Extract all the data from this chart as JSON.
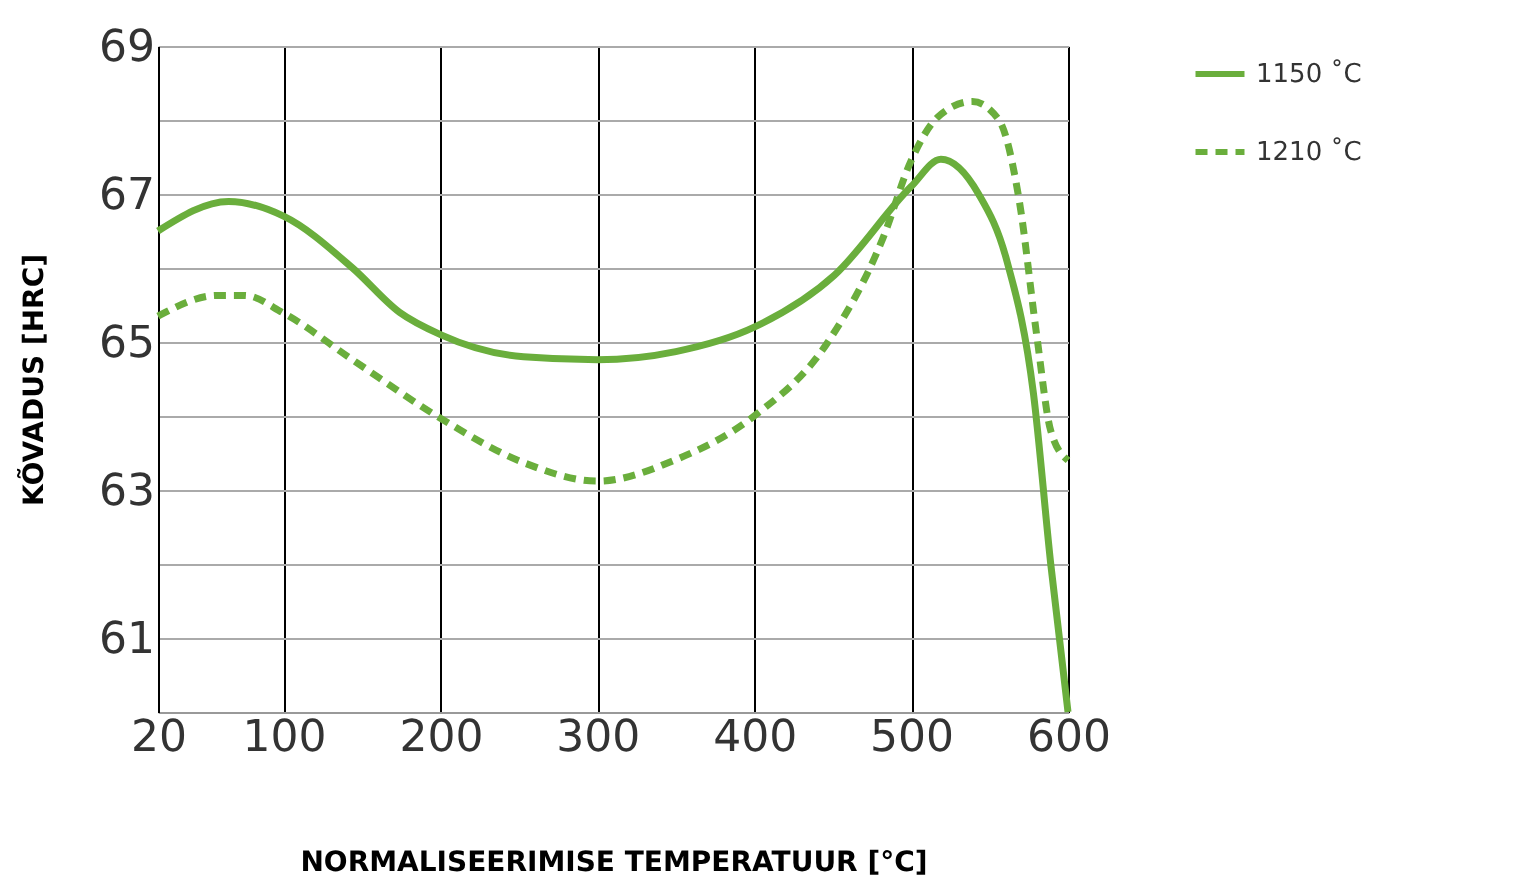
{
  "chart_data": {
    "type": "line",
    "xlabel": "NORMALISEERIMISE TEMPERATUUR [°C]",
    "ylabel": "KÕVADUS [HRC]",
    "xlim": [
      20,
      600
    ],
    "xticks": [
      20,
      100,
      200,
      300,
      400,
      500,
      600
    ],
    "ylim": [
      60,
      69
    ],
    "yticks": [
      {
        "value": 60,
        "label": null
      },
      61,
      {
        "value": 62,
        "label": null
      },
      63,
      {
        "value": 64,
        "label": null
      },
      65,
      {
        "value": 66,
        "label": null
      },
      67,
      {
        "value": 68,
        "label": null
      },
      69
    ],
    "grid": true,
    "legend": "right",
    "marker": "none",
    "series": [
      {
        "name": "1150 ˚C",
        "color": "#6aae3c",
        "line_style": "solid",
        "x": [
          20,
          65,
          100,
          144,
          174,
          200,
          253,
          300,
          350,
          400,
          451,
          500,
          519,
          543,
          561,
          578,
          589,
          600
        ],
        "values": [
          66.5,
          66.9,
          66.7,
          66.0,
          65.4,
          65.1,
          64.8,
          64.76,
          64.87,
          65.2,
          65.9,
          67.1,
          67.47,
          67.0,
          66.1,
          64.3,
          62.0,
          60.0
        ]
      },
      {
        "name": "1210 ˚C",
        "color": "#6aae3c",
        "line_style": "dashed",
        "x": [
          20,
          58,
          75,
          100,
          144,
          200,
          253,
          300,
          350,
          400,
          447,
          482,
          500,
          517,
          539,
          556,
          569,
          580,
          589,
          600
        ],
        "values": [
          65.35,
          65.63,
          65.63,
          65.39,
          64.76,
          63.97,
          63.37,
          63.12,
          63.41,
          64.0,
          65.0,
          66.4,
          67.45,
          68.04,
          68.25,
          68.0,
          66.9,
          65.1,
          63.8,
          63.4
        ]
      }
    ]
  }
}
